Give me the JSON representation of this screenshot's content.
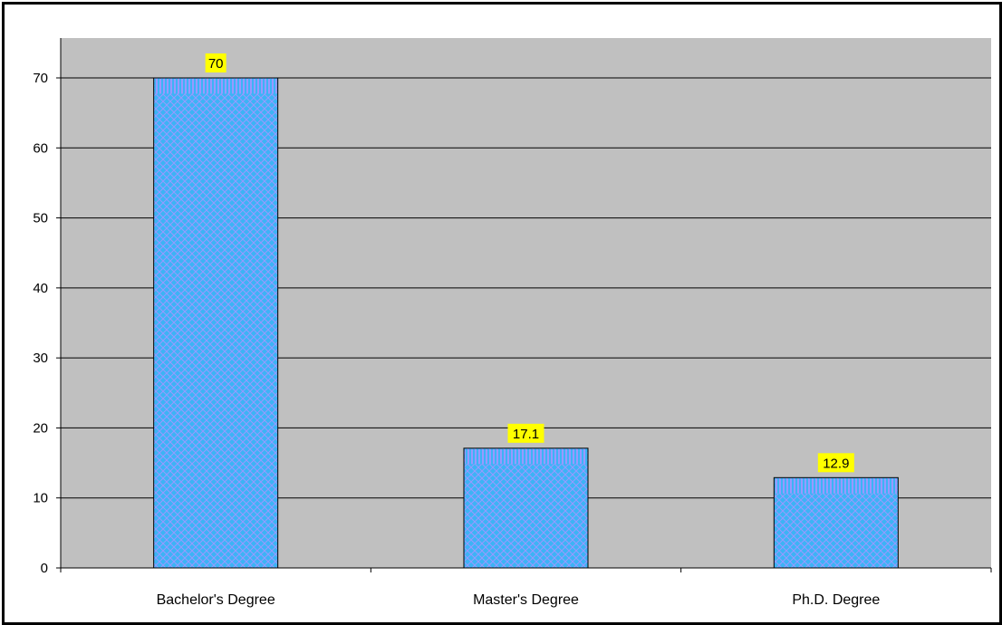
{
  "chart_data": {
    "type": "bar",
    "title": "",
    "xlabel": "",
    "ylabel": "",
    "categories": [
      "Bachelor's Degree",
      "Master's Degree",
      "Ph.D. Degree"
    ],
    "values": [
      70,
      17.1,
      12.9
    ],
    "data_labels": [
      "70",
      "17.1",
      "12.9"
    ],
    "ylim": [
      0,
      70
    ],
    "yticks": [
      0,
      10,
      20,
      30,
      40,
      50,
      60,
      70
    ],
    "grid": true,
    "legend": "none",
    "colors": {
      "plot_background": "#c0c0c0",
      "bar_fill": "#3cb4f5",
      "bar_pattern": "#9999ff",
      "label_background": "#ffff00",
      "gridline": "#000000"
    }
  }
}
